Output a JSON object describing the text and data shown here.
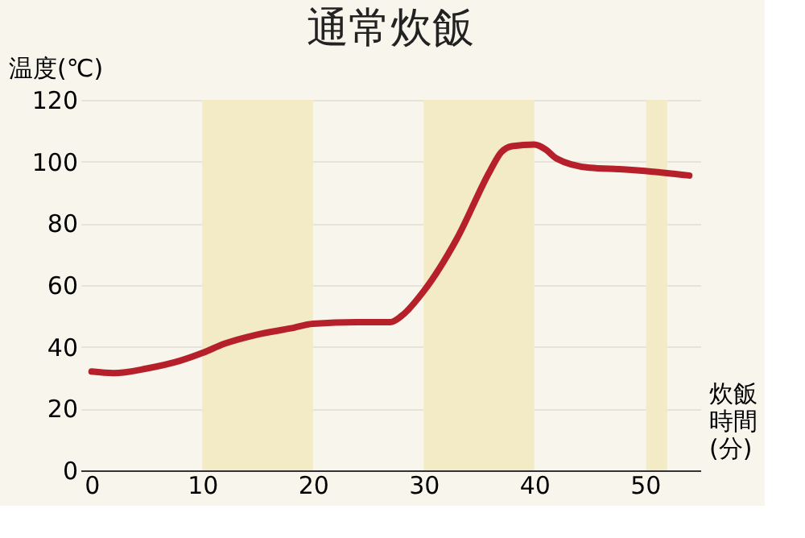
{
  "chart_data": {
    "type": "line",
    "title": "通常炊飯",
    "ylabel": "温度(℃)",
    "xlabel": "炊飯時間(分)",
    "x": [
      0,
      2,
      5,
      8,
      10,
      12,
      15,
      18,
      20,
      24,
      27,
      28,
      30,
      33,
      36,
      37,
      38,
      40,
      41,
      42,
      45,
      48,
      50,
      54
    ],
    "series": [
      {
        "color": "#b5202a",
        "values": [
          32,
          31.5,
          33,
          35.5,
          38,
          41,
          44,
          46,
          47.5,
          48,
          48,
          50,
          58,
          75,
          97,
          103,
          105,
          105.5,
          104,
          101,
          98,
          97.5,
          97,
          95.5
        ]
      }
    ],
    "xlim": [
      -1,
      55
    ],
    "ylim": [
      0,
      120
    ],
    "xticks": [
      0,
      10,
      20,
      30,
      40,
      50
    ],
    "yticks": [
      0,
      20,
      40,
      60,
      80,
      100,
      120
    ],
    "grid": "y",
    "marker": "none",
    "line_style": "solid",
    "bands": [
      {
        "axis": "x",
        "from": 10,
        "to": 20,
        "color": "#f3ebc6"
      },
      {
        "axis": "x",
        "from": 30,
        "to": 40,
        "color": "#f3ebc6"
      },
      {
        "axis": "x",
        "from": 50.1,
        "to": 52,
        "color": "#f3ebc6"
      }
    ]
  }
}
